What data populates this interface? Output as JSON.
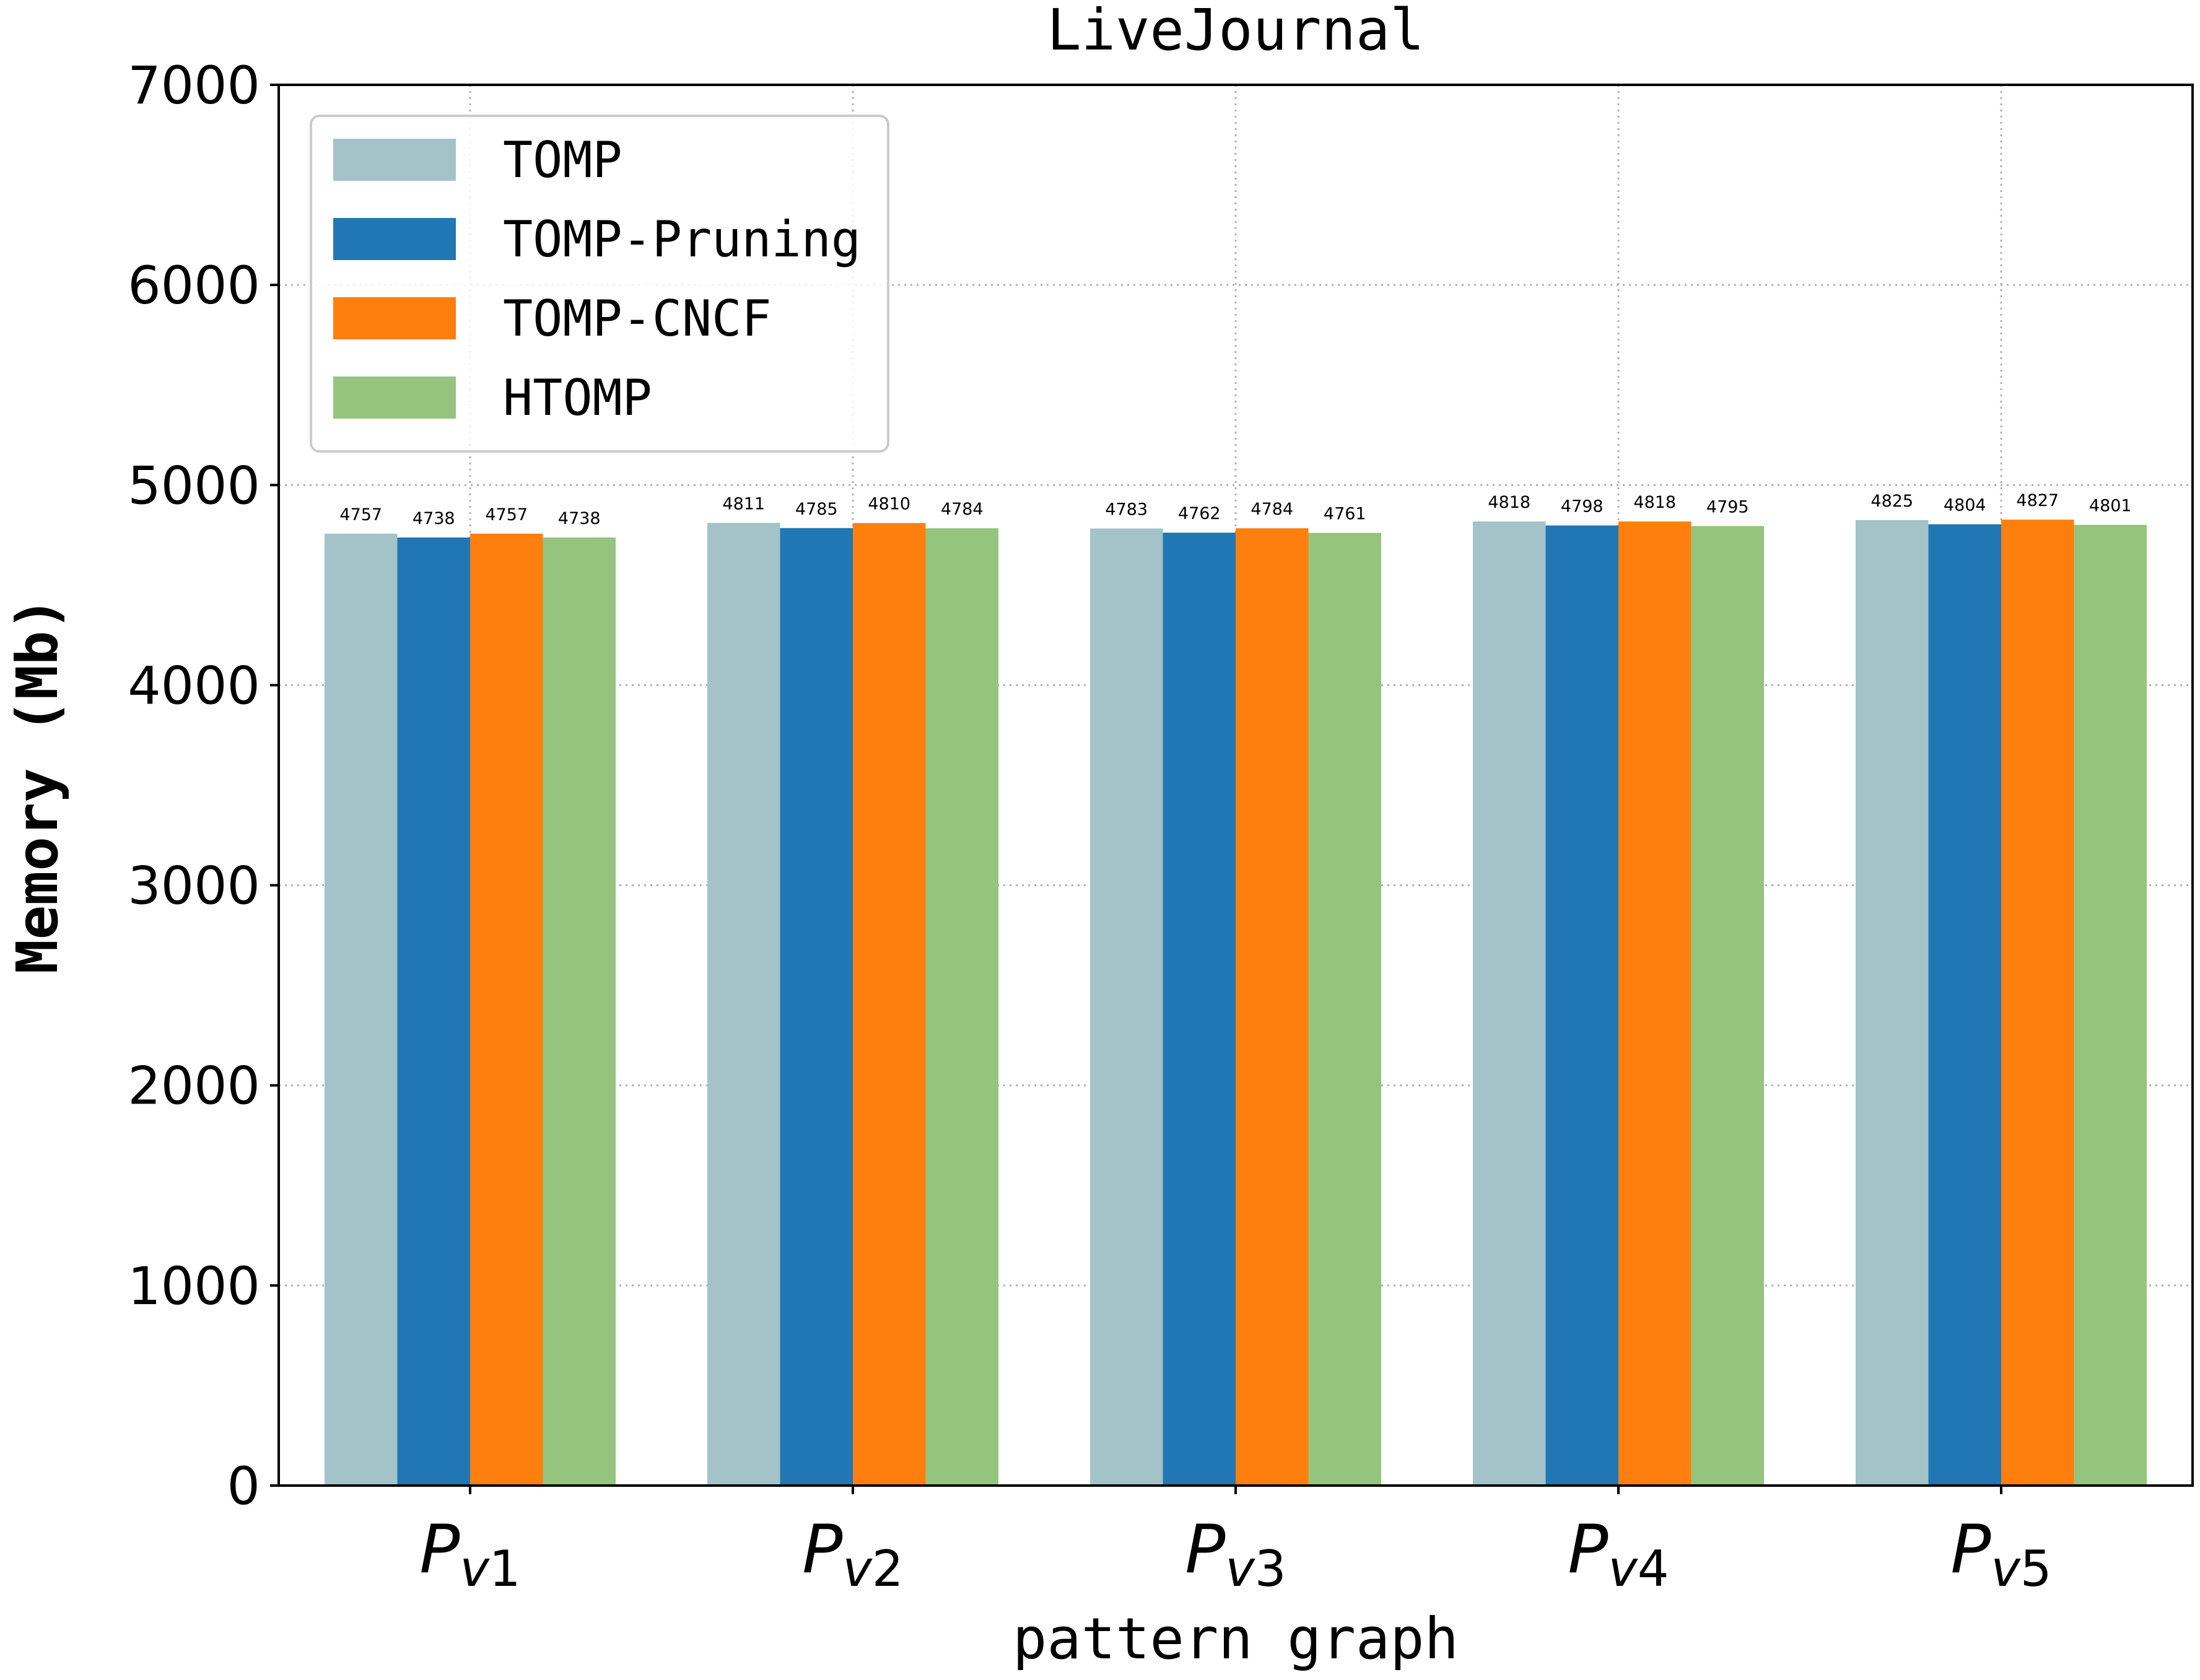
{
  "chart_data": {
    "type": "bar",
    "title": "LiveJournal",
    "xlabel": "pattern graph",
    "ylabel": "Memory (Mb)",
    "ylim": [
      0,
      7000
    ],
    "yticks": [
      0,
      1000,
      2000,
      3000,
      4000,
      5000,
      6000,
      7000
    ],
    "grid": true,
    "legend_position": "top-left",
    "categories": [
      {
        "base": "P",
        "sub": "v1"
      },
      {
        "base": "P",
        "sub": "v2"
      },
      {
        "base": "P",
        "sub": "v3"
      },
      {
        "base": "P",
        "sub": "v4"
      },
      {
        "base": "P",
        "sub": "v5"
      }
    ],
    "series": [
      {
        "name": "TOMP",
        "color": "#a3c3c9",
        "values": [
          4757,
          4811,
          4783,
          4818,
          4825
        ]
      },
      {
        "name": "TOMP-Pruning",
        "color": "#2077b4",
        "values": [
          4738,
          4785,
          4762,
          4798,
          4804
        ]
      },
      {
        "name": "TOMP-CNCF",
        "color": "#ff7f0e",
        "values": [
          4757,
          4810,
          4784,
          4818,
          4827
        ]
      },
      {
        "name": "HTOMP",
        "color": "#94c47d",
        "values": [
          4738,
          4784,
          4761,
          4795,
          4801
        ]
      }
    ]
  }
}
